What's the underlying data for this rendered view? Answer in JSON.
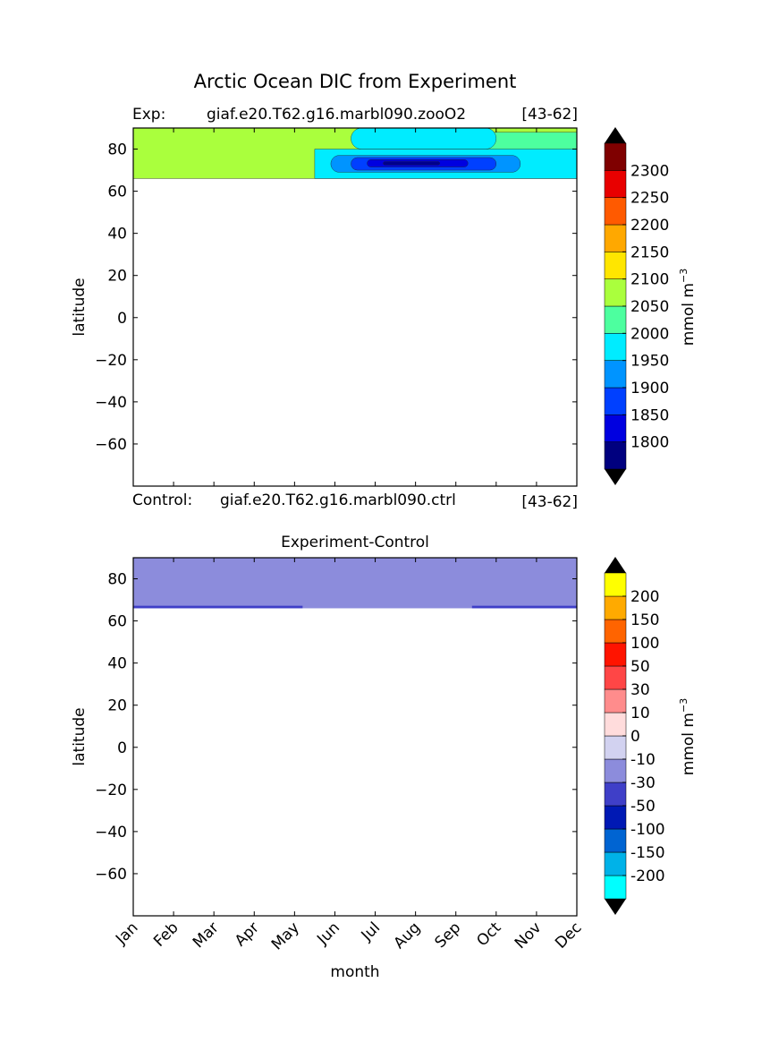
{
  "figure": {
    "title": "Arctic Ocean DIC from Experiment"
  },
  "chart_data": [
    {
      "type": "heatmap",
      "panel": "top",
      "annotations": {
        "exp_label": "Exp:",
        "exp_name": "giaf.e20.T62.g16.marbl090.zooO2",
        "exp_years": "[43-62]",
        "ctrl_label": "Control:",
        "ctrl_name": "giaf.e20.T62.g16.marbl090.ctrl",
        "ctrl_years": "[43-62]"
      },
      "xlabel": "",
      "ylabel": "latitude",
      "xlim": [
        0,
        11
      ],
      "ylim": [
        -80,
        90
      ],
      "yticks": [
        80,
        60,
        40,
        20,
        0,
        -20,
        -40,
        -60
      ],
      "ytick_labels": [
        "80",
        "60",
        "40",
        "20",
        "0",
        "−20",
        "−40",
        "−60"
      ],
      "months": [
        "Jan",
        "Feb",
        "Mar",
        "Apr",
        "May",
        "Jun",
        "Jul",
        "Aug",
        "Sep",
        "Oct",
        "Nov",
        "Dec"
      ],
      "data_lat_range": [
        66,
        90
      ],
      "contour_bands": [
        {
          "lat0": 66,
          "lat1": 90,
          "level": 2100,
          "color": "#aaff3d"
        },
        {
          "lat0": 68,
          "lat1": 88,
          "level": 2050,
          "color": "#4dff9f",
          "months_from": 6.6,
          "months_to": 11
        },
        {
          "lat0": 80,
          "lat1": 90,
          "level": 2000,
          "color": "#00ecff",
          "months_from": 5.4,
          "months_to": 9.0
        },
        {
          "lat0": 66,
          "lat1": 80,
          "level": 2000,
          "color": "#00ecff",
          "months_from": 4.5,
          "months_to": 11
        },
        {
          "lat0": 69,
          "lat1": 77,
          "level": 1950,
          "color": "#0094ff",
          "months_from": 4.9,
          "months_to": 9.6
        },
        {
          "lat0": 70,
          "lat1": 76,
          "level": 1900,
          "color": "#0040ff",
          "months_from": 5.4,
          "months_to": 9.0
        },
        {
          "lat0": 71.5,
          "lat1": 75,
          "level": 1850,
          "color": "#0000e0",
          "months_from": 5.8,
          "months_to": 8.3
        },
        {
          "lat0": 72.5,
          "lat1": 74,
          "level": 1800,
          "color": "#00008d",
          "months_from": 6.2,
          "months_to": 7.6
        }
      ],
      "colorbar": {
        "label": "mmol m",
        "label_sup": "−3",
        "ticks": [
          "1800",
          "1850",
          "1900",
          "1950",
          "2000",
          "2050",
          "2100",
          "2150",
          "2200",
          "2250",
          "2300"
        ],
        "colors": [
          "#00007f",
          "#0000e0",
          "#0040ff",
          "#0094ff",
          "#00ecff",
          "#4dff9f",
          "#aaff3d",
          "#ffe600",
          "#ffa800",
          "#ff5a00",
          "#e80000",
          "#7f0000"
        ],
        "extend_color": "#000000"
      }
    },
    {
      "type": "heatmap",
      "panel": "bottom",
      "title": "Experiment-Control",
      "xlabel": "month",
      "ylabel": "latitude",
      "xlim": [
        0,
        11
      ],
      "ylim": [
        -80,
        90
      ],
      "yticks": [
        80,
        60,
        40,
        20,
        0,
        -20,
        -40,
        -60
      ],
      "ytick_labels": [
        "80",
        "60",
        "40",
        "20",
        "0",
        "−20",
        "−40",
        "−60"
      ],
      "months": [
        "Jan",
        "Feb",
        "Mar",
        "Apr",
        "May",
        "Jun",
        "Jul",
        "Aug",
        "Sep",
        "Oct",
        "Nov",
        "Dec"
      ],
      "data_lat_range": [
        66,
        90
      ],
      "contour_bands": [
        {
          "lat0": 66,
          "lat1": 90,
          "level": -30,
          "color": "#8c8cdc"
        },
        {
          "lat0": 66,
          "lat1": 67.2,
          "level": -50,
          "color": "#3f3fc8",
          "months_from": 0,
          "months_to": 4.2
        },
        {
          "lat0": 66,
          "lat1": 67.2,
          "level": -50,
          "color": "#3f3fc8",
          "months_from": 8.4,
          "months_to": 11
        }
      ],
      "colorbar": {
        "label": "mmol m",
        "label_sup": "−3",
        "ticks": [
          "-200",
          "-150",
          "-100",
          "-50",
          "-30",
          "-10",
          "0",
          "10",
          "30",
          "50",
          "100",
          "150",
          "200"
        ],
        "colors": [
          "#00ffff",
          "#00b2e8",
          "#0064d2",
          "#0019b4",
          "#3f3fc8",
          "#8c8cdc",
          "#d2d2f0",
          "#ffdcdc",
          "#ff8c8c",
          "#ff4646",
          "#ff1400",
          "#ff6400",
          "#ffaa00",
          "#ffff00"
        ],
        "extend_color": "#000000"
      }
    }
  ]
}
